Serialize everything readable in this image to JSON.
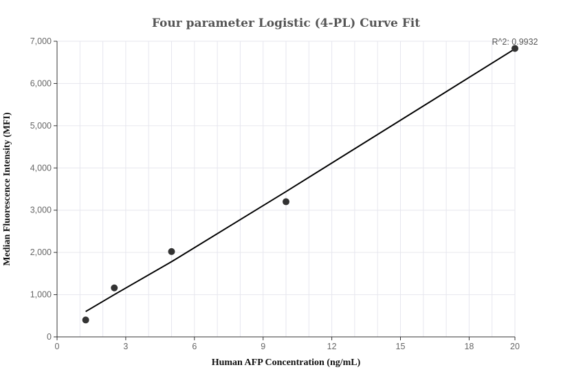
{
  "chart_data": {
    "type": "scatter",
    "title": "Four parameter Logistic (4-PL) Curve Fit",
    "xlabel": "Human AFP Concentration (ng/mL)",
    "ylabel": "Median Fluorescence Intensity (MFI)",
    "xlim": [
      0,
      20
    ],
    "ylim": [
      0,
      7000
    ],
    "x_ticks": [
      0,
      3,
      6,
      9,
      12,
      15,
      18,
      20
    ],
    "x_tick_labels": [
      "0",
      "3",
      "6",
      "9",
      "12",
      "15",
      "18",
      "20"
    ],
    "y_ticks": [
      0,
      1000,
      2000,
      3000,
      4000,
      5000,
      6000,
      7000
    ],
    "y_tick_labels": [
      "0",
      "1,000",
      "2,000",
      "3,000",
      "4,000",
      "5,000",
      "6,000",
      "7,000"
    ],
    "grid": true,
    "points": [
      {
        "x": 1.25,
        "y": 400
      },
      {
        "x": 2.5,
        "y": 1160
      },
      {
        "x": 5,
        "y": 2020
      },
      {
        "x": 10,
        "y": 3200
      },
      {
        "x": 20,
        "y": 6830
      }
    ],
    "fit_curve": {
      "x": [
        1.25,
        2.5,
        5,
        10,
        20
      ],
      "y": [
        600,
        1000,
        1780,
        3440,
        6820
      ]
    },
    "annotation": "R^2: 0.9932",
    "colors": {
      "points": "#333333",
      "curve": "#000000",
      "grid": "#e6e6ee",
      "axis": "#333333"
    }
  }
}
